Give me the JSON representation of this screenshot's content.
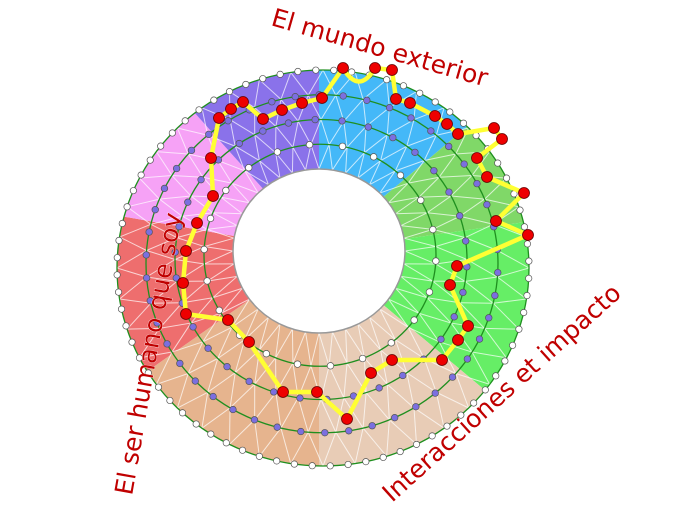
{
  "labels": {
    "top": "El mundo exterior",
    "left": "El ser humano que soy",
    "bottom_right": "Interacciones et impacto"
  },
  "colors": {
    "label": "#c00000",
    "path": "#ffff33",
    "path_node": "#ee0000",
    "ring_line": "#1f8f1f",
    "inner_node": "#7b6fe0",
    "sectors": [
      "#44b8f8",
      "#80d868",
      "#66ee66",
      "#e8ccb6",
      "#e6b48e",
      "#ee6e6e",
      "#f6a2f6",
      "#8a72ea"
    ]
  }
}
